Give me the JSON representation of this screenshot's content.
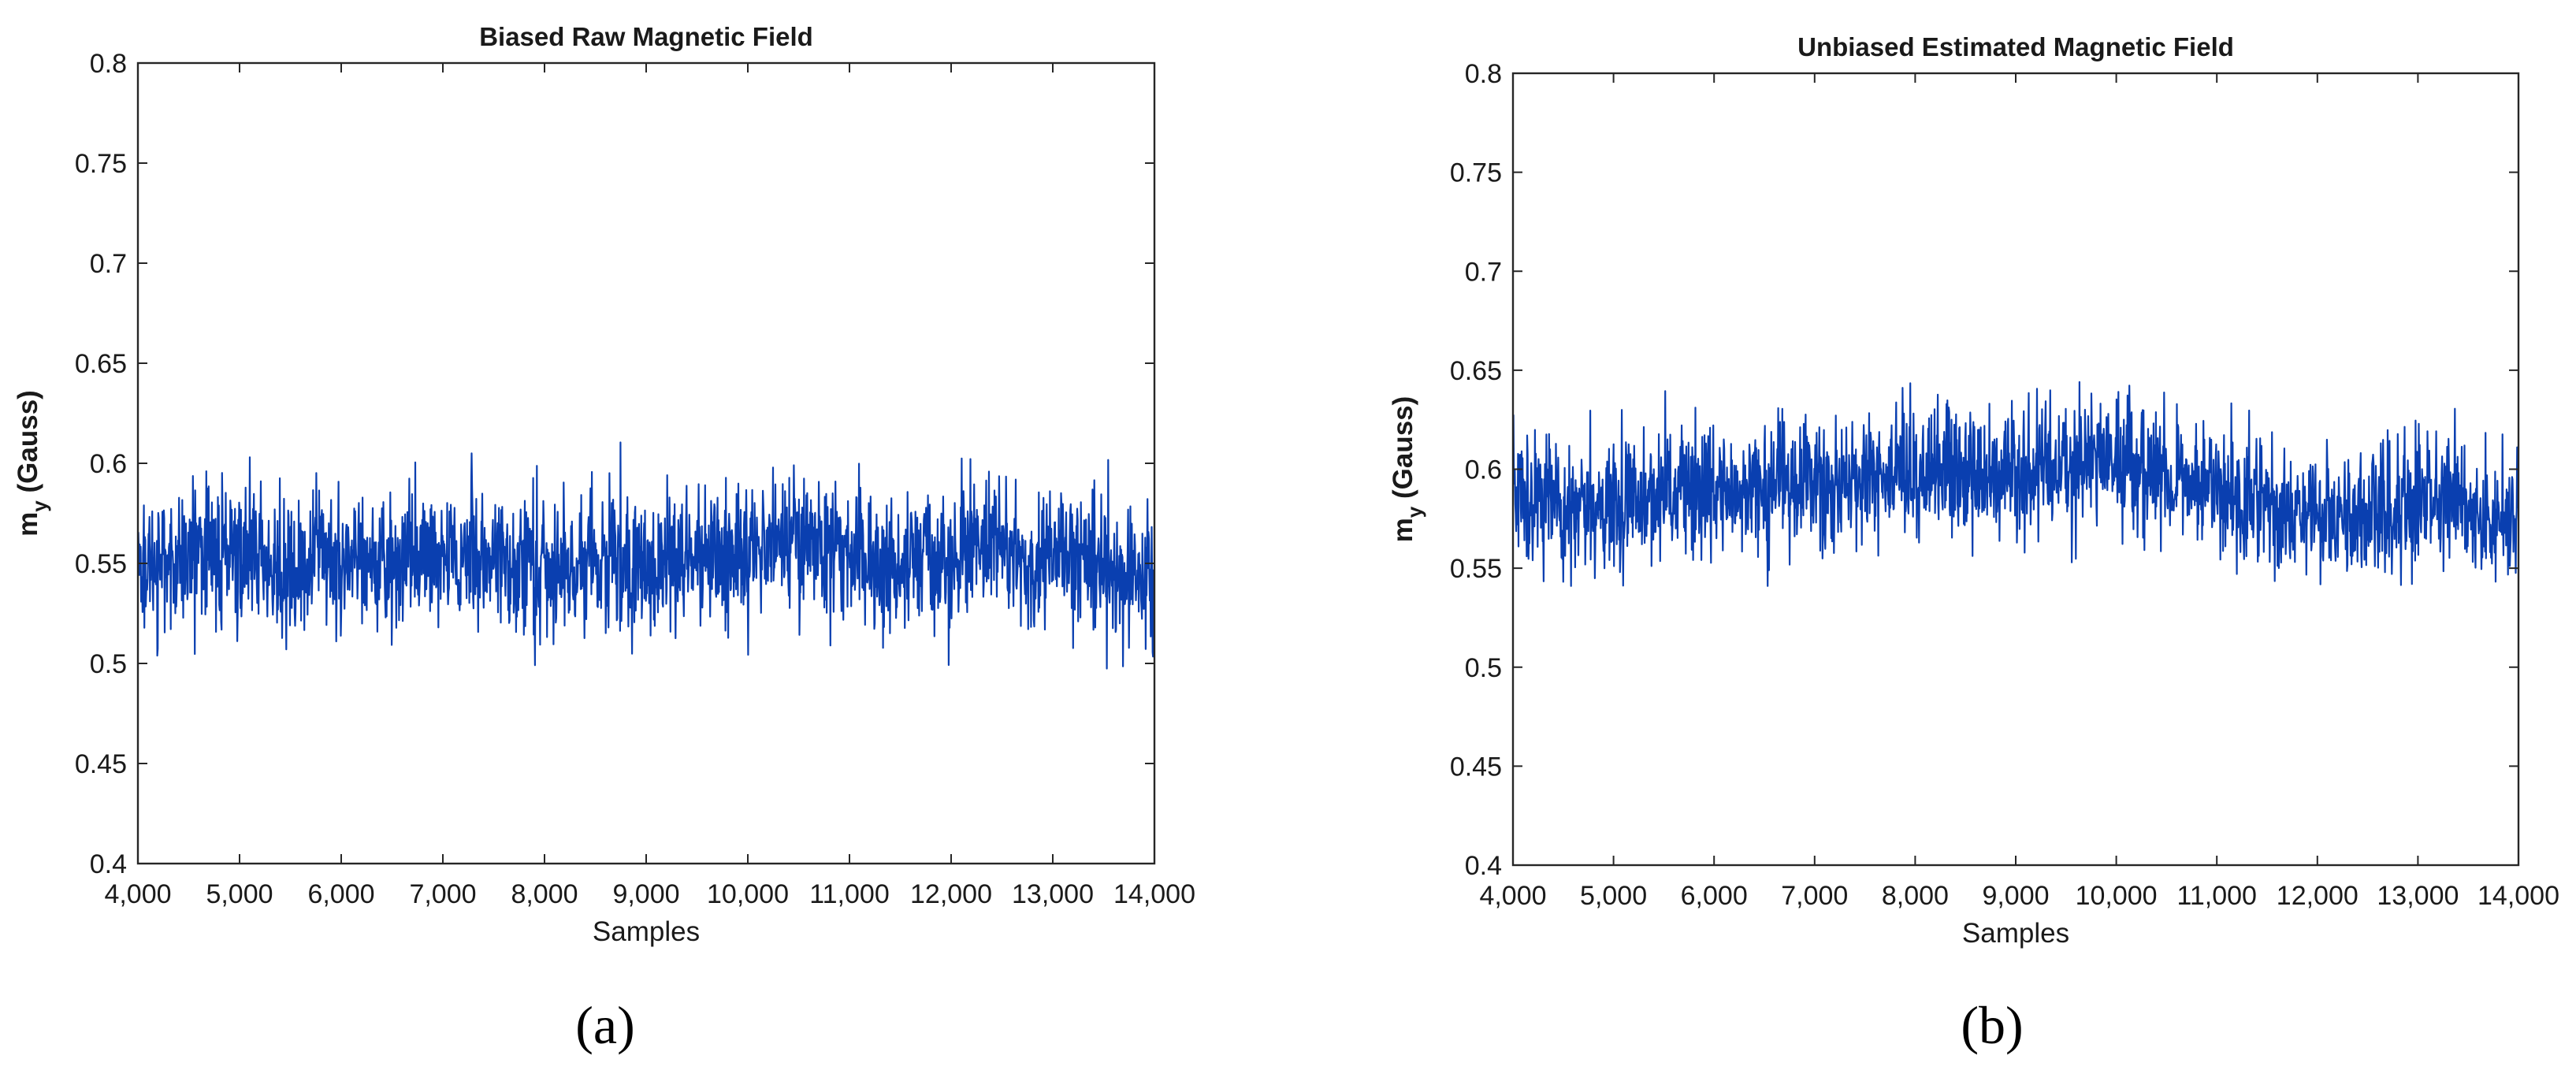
{
  "chart_data": [
    {
      "type": "line",
      "panel_label": "a",
      "title": "Biased Raw Magnetic Field",
      "xlabel": "Samples",
      "ylabel_main": "m",
      "ylabel_sub": "y",
      "ylabel_unit": " (Gauss)",
      "xlim": [
        4000,
        14000
      ],
      "ylim": [
        0.4,
        0.8
      ],
      "xticks": [
        4000,
        5000,
        6000,
        7000,
        8000,
        9000,
        10000,
        11000,
        12000,
        13000,
        14000
      ],
      "xtick_labels": [
        "4,000",
        "5,000",
        "6,000",
        "7,000",
        "8,000",
        "9,000",
        "10,000",
        "11,000",
        "12,000",
        "13,000",
        "14,000"
      ],
      "yticks": [
        0.4,
        0.45,
        0.5,
        0.55,
        0.6,
        0.65,
        0.7,
        0.75,
        0.8
      ],
      "ytick_labels": [
        "0.4",
        "0.45",
        "0.5",
        "0.55",
        "0.6",
        "0.65",
        "0.7",
        "0.75",
        "0.8"
      ],
      "series": [
        {
          "name": "m_y",
          "color": "#0a3fb0",
          "mean": 0.552,
          "std": 0.017,
          "min": 0.497,
          "max": 0.613,
          "samples": 10000
        }
      ]
    },
    {
      "type": "line",
      "panel_label": "b",
      "title": "Unbiased Estimated Magnetic Field",
      "xlabel": "Samples",
      "ylabel_main": "m",
      "ylabel_sub": "y",
      "ylabel_unit": " (Gauss)",
      "xlim": [
        4000,
        14000
      ],
      "ylim": [
        0.4,
        0.8
      ],
      "xticks": [
        4000,
        5000,
        6000,
        7000,
        8000,
        9000,
        10000,
        11000,
        12000,
        13000,
        14000
      ],
      "xtick_labels": [
        "4,000",
        "5,000",
        "6,000",
        "7,000",
        "8,000",
        "9,000",
        "10,000",
        "11,000",
        "12,000",
        "13,000",
        "14,000"
      ],
      "yticks": [
        0.4,
        0.45,
        0.5,
        0.55,
        0.6,
        0.65,
        0.7,
        0.75,
        0.8
      ],
      "ytick_labels": [
        "0.4",
        "0.45",
        "0.5",
        "0.55",
        "0.6",
        "0.65",
        "0.7",
        "0.75",
        "0.8"
      ],
      "series": [
        {
          "name": "m_y",
          "color": "#0a3fb0",
          "mean": 0.589,
          "std": 0.016,
          "min": 0.541,
          "max": 0.645,
          "samples": 10000
        }
      ]
    }
  ],
  "subfigure_labels": [
    "(a)",
    "(b)"
  ]
}
